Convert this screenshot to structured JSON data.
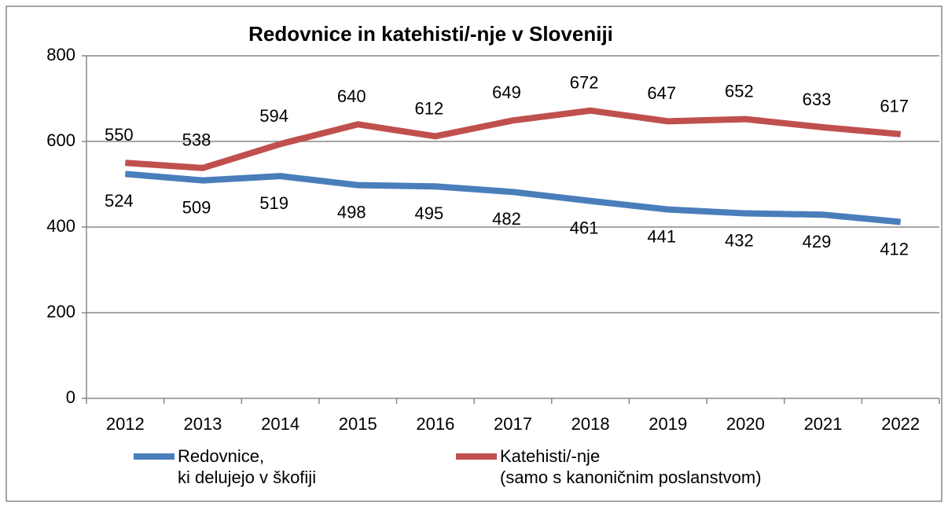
{
  "chart_data": {
    "type": "line",
    "title": "Redovnice in katehisti/-nje v Sloveniji",
    "categories": [
      "2012",
      "2013",
      "2014",
      "2015",
      "2016",
      "2017",
      "2018",
      "2019",
      "2020",
      "2021",
      "2022"
    ],
    "series": [
      {
        "name": "Redovnice,\nki delujejo v škofiji",
        "color": "#4a7ebb",
        "values": [
          524,
          509,
          519,
          498,
          495,
          482,
          461,
          441,
          432,
          429,
          412
        ]
      },
      {
        "name": "Katehisti/-nje\n(samo s kanoničnim poslanstvom)",
        "color": "#c0504d",
        "values": [
          550,
          538,
          594,
          640,
          612,
          649,
          672,
          647,
          652,
          633,
          617
        ]
      }
    ],
    "ylim": [
      0,
      800
    ],
    "yticks": [
      0,
      200,
      400,
      600,
      800
    ],
    "grid": true,
    "legend": "bottom"
  }
}
